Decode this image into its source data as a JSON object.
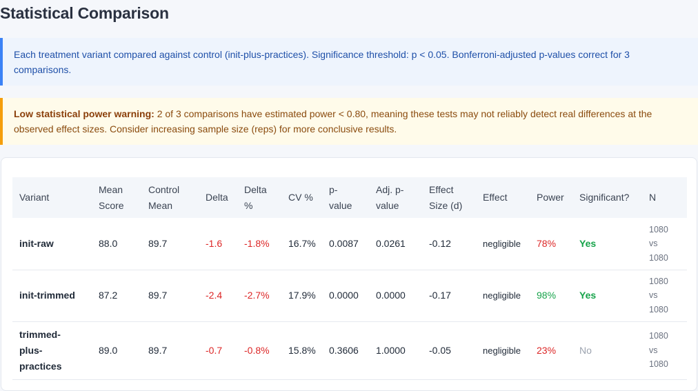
{
  "title": "Statistical Comparison",
  "info": "Each treatment variant compared against control (init-plus-practices). Significance threshold: p < 0.05. Bonferroni-adjusted p-values correct for 3 comparisons.",
  "warning": {
    "label": "Low statistical power warning:",
    "text": " 2 of 3 comparisons have estimated power < 0.80, meaning these tests may not reliably detect real differences at the observed effect sizes. Consider increasing sample size (reps) for more conclusive results."
  },
  "table": {
    "headers": [
      "Variant",
      "Mean Score",
      "Control Mean",
      "Delta",
      "Delta %",
      "CV %",
      "p-value",
      "Adj. p-value",
      "Effect Size (d)",
      "Effect",
      "Power",
      "Significant?",
      "N"
    ],
    "rows": [
      {
        "variant": "init-raw",
        "mean": "88.0",
        "control": "89.7",
        "delta": "-1.6",
        "delta_pct": "-1.8%",
        "cv": "16.7%",
        "p": "0.0087",
        "adj_p": "0.0261",
        "d": "-0.12",
        "effect": "negligible",
        "power": "78%",
        "power_ok": false,
        "sig": "Yes",
        "n1": "1080",
        "vs": "vs",
        "n2": "1080"
      },
      {
        "variant": "init-trimmed",
        "mean": "87.2",
        "control": "89.7",
        "delta": "-2.4",
        "delta_pct": "-2.7%",
        "cv": "17.9%",
        "p": "0.0000",
        "adj_p": "0.0000",
        "d": "-0.17",
        "effect": "negligible",
        "power": "98%",
        "power_ok": true,
        "sig": "Yes",
        "n1": "1080",
        "vs": "vs",
        "n2": "1080"
      },
      {
        "variant": "trimmed-plus-practices",
        "mean": "89.0",
        "control": "89.7",
        "delta": "-0.7",
        "delta_pct": "-0.8%",
        "cv": "15.8%",
        "p": "0.3606",
        "adj_p": "1.0000",
        "d": "-0.05",
        "effect": "negligible",
        "power": "23%",
        "power_ok": false,
        "sig": "No",
        "n1": "1080",
        "vs": "vs",
        "n2": "1080"
      }
    ]
  },
  "colors": {
    "info_accent": "#3b82f6",
    "warn_accent": "#f59e0b",
    "negative": "#dc2626",
    "positive": "#16a34a",
    "muted": "#9ca3af"
  }
}
